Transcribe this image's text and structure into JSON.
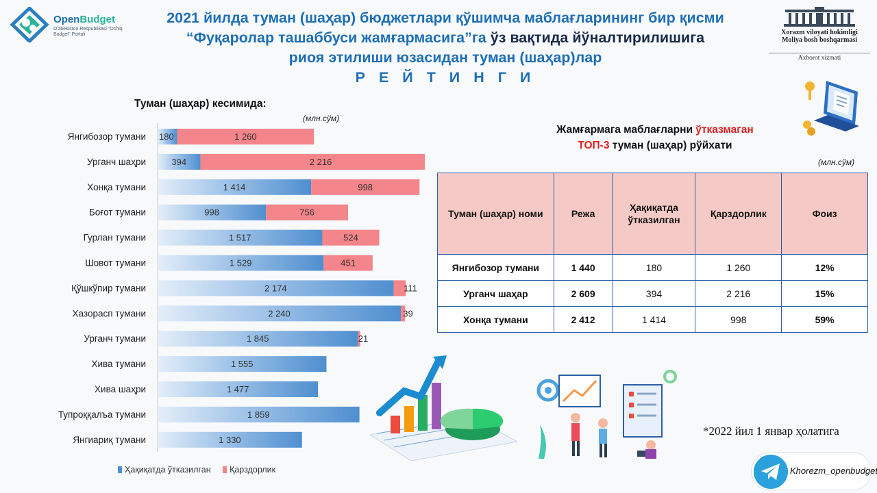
{
  "logo": {
    "name_part1": "Open",
    "name_part2": "Budget",
    "subtitle": "O'zbekiston Respublikasi \"Ochiq Budget\" Portali"
  },
  "title": {
    "line1": "2021 йилда туман (шаҳар) бюджетлари қўшимча маблағларининг бир қисми",
    "line2_blue": "“Фуқаролар ташаббуси жамғармасига”га",
    "line2_dark": "ўз вақтида йўналтирилишига",
    "line3": "риоя этилиши юзасидан туман (шаҳар)лар",
    "line4": "Р Е Й Т И Н Г И"
  },
  "org_logo": {
    "line1": "Xorazm viloyati hokimligi",
    "line2": "Moliya bosh boshqarmasi",
    "line3": "Axborot xizmati"
  },
  "left_section_title": "Туман (шаҳар) кесимида:",
  "unit": "(млн.сўм)",
  "colors": {
    "transferred": "#4f8fd0",
    "debt": "#f4858a",
    "accent": "#1f6fb5"
  },
  "chart_data": {
    "type": "bar",
    "orientation": "horizontal",
    "stacked": true,
    "categories": [
      "Янгибозор тумани",
      "Урганч шаҳри",
      "Хонқа тумани",
      "Боғот тумани",
      "Гурлан тумани",
      "Шовот тумани",
      "Қўшкўпир тумани",
      "Хазорасп тумани",
      "Урганч тумани",
      "Хива тумани",
      "Хива шаҳри",
      "Тупроққалъа тумани",
      "Янгиариқ тумани"
    ],
    "series": [
      {
        "name": "Ҳақиқатда ўтказилган",
        "values": [
          180,
          394,
          1414,
          998,
          1517,
          1529,
          2174,
          2240,
          1845,
          1555,
          1477,
          1859,
          1330
        ],
        "labels": [
          "180",
          "394",
          "1 414",
          "998",
          "1 517",
          "1 529",
          "2 174",
          "2 240",
          "1 845",
          "1 555",
          "1 477",
          "1 859",
          "1 330"
        ]
      },
      {
        "name": "Қарздорлик",
        "values": [
          1260,
          2216,
          998,
          756,
          524,
          451,
          111,
          39,
          21,
          0,
          0,
          0,
          0
        ],
        "labels": [
          "1 260",
          "2 216",
          "998",
          "756",
          "524",
          "451",
          "111",
          "39",
          "21",
          "",
          "",
          "",
          ""
        ]
      }
    ],
    "xlim": [
      0,
      2700
    ],
    "grid": false,
    "legend_position": "bottom"
  },
  "top3": {
    "title_part1": "Жамғармага маблағларни",
    "title_red1": "ўтказмаган",
    "title_red2": "ТОП-3",
    "title_part2": "туман (шаҳар) рўйхати",
    "headers": [
      "Туман (шаҳар) номи",
      "Режа",
      "Ҳақиқатда ўтказилган",
      "Қарздорлик",
      "Фоиз"
    ],
    "rows": [
      [
        "Янгибозор тумани",
        "1 440",
        "180",
        "1 260",
        "12%"
      ],
      [
        "Урганч шаҳар",
        "2 609",
        "394",
        "2 216",
        "15%"
      ],
      [
        "Хонқа тумани",
        "2 412",
        "1 414",
        "998",
        "59%"
      ]
    ]
  },
  "note": "*2022 йил 1 январ ҳолатига",
  "telegram": {
    "icon": "telegram-icon",
    "handle": "Khorezm_openbudget"
  }
}
